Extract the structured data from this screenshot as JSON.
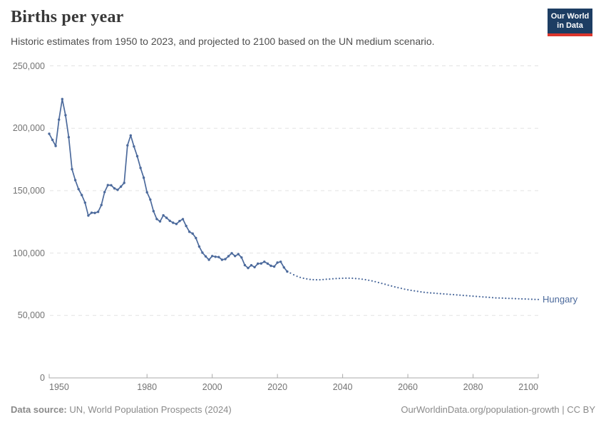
{
  "header": {
    "title": "Births per year",
    "subtitle": "Historic estimates from 1950 to 2023, and projected to 2100 based on the UN medium scenario.",
    "logo": {
      "line1": "Our World",
      "line2": "in Data"
    }
  },
  "chart_data": {
    "type": "line",
    "title": "Births per year",
    "entity": "Hungary",
    "label": "Hungary",
    "line_color": "#4c6a9c",
    "grid": "dashed horizontal",
    "legend_position": "end-of-line label",
    "xlim": [
      1950,
      2100
    ],
    "ylim": [
      0,
      250000
    ],
    "x_ticks": [
      1950,
      1980,
      2000,
      2020,
      2040,
      2060,
      2080,
      2100
    ],
    "y_ticks": [
      0,
      50000,
      100000,
      150000,
      200000,
      250000
    ],
    "y_tick_labels": [
      "0",
      "50,000",
      "100,000",
      "150,000",
      "200,000",
      "250,000"
    ],
    "series": [
      {
        "name": "Historic estimates",
        "style": "solid",
        "start_year": 1950,
        "values": [
          195567,
          190645,
          185820,
          206926,
          223347,
          210430,
          192810,
          167202,
          158428,
          151194,
          146461,
          140365,
          130053,
          132335,
          132141,
          133009,
          138489,
          148886,
          154419,
          154318,
          151819,
          150640,
          153265,
          156224,
          186288,
          194240,
          185405,
          177574,
          168160,
          160364,
          148673,
          142890,
          133559,
          127258,
          125359,
          130200,
          128204,
          125840,
          124296,
          123304,
          125679,
          127207,
          121724,
          117033,
          115598,
          112054,
          105272,
          100350,
          97301,
          94645,
          97597,
          97047,
          96804,
          94647,
          95137,
          97496,
          99871,
          97613,
          99149,
          96442,
          90335,
          88049,
          90269,
          88689,
          91510,
          91690,
          93063,
          91577,
          89807,
          89193,
          92338,
          93039,
          88491,
          85200
        ]
      },
      {
        "name": "UN medium scenario projection",
        "style": "dotted",
        "start_year": 2024,
        "values": [
          84000,
          82600,
          81400,
          80500,
          79800,
          79300,
          78900,
          78700,
          78600,
          78600,
          78800,
          79000,
          79200,
          79400,
          79600,
          79700,
          79800,
          79900,
          79900,
          79800,
          79600,
          79400,
          79100,
          78700,
          78200,
          77700,
          77100,
          76400,
          75700,
          75000,
          74300,
          73600,
          72900,
          72300,
          71700,
          71100,
          70600,
          70100,
          69700,
          69300,
          68900,
          68600,
          68300,
          68100,
          67900,
          67700,
          67500,
          67300,
          67100,
          66900,
          66700,
          66500,
          66300,
          66100,
          65900,
          65700,
          65500,
          65300,
          65100,
          64900,
          64700,
          64500,
          64300,
          64100,
          64000,
          63900,
          63800,
          63700,
          63600,
          63500,
          63400,
          63300,
          63200,
          63100,
          63000,
          62900,
          62800
        ]
      }
    ]
  },
  "footer": {
    "source_label": "Data source:",
    "source_text": " UN, World Population Prospects (2024)",
    "credit": "OurWorldinData.org/population-growth | CC BY"
  }
}
